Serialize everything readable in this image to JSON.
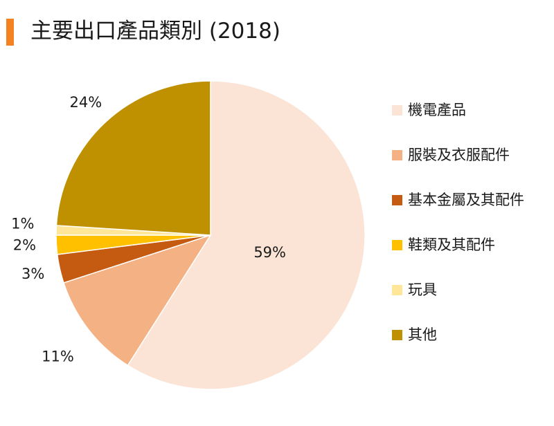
{
  "chart_data": {
    "type": "pie",
    "title": "主要出口產品類別 (2018)",
    "slices": [
      {
        "label": "機電產品",
        "value": 59,
        "value_label": "59%",
        "color": "#fbe4d5"
      },
      {
        "label": "服裝及衣服配件",
        "value": 11,
        "value_label": "11%",
        "color": "#f4b183"
      },
      {
        "label": "基本金屬及其配件",
        "value": 3,
        "value_label": "3%",
        "color": "#c55a11"
      },
      {
        "label": "鞋類及其配件",
        "value": 2,
        "value_label": "2%",
        "color": "#ffc000"
      },
      {
        "label": "玩具",
        "value": 1,
        "value_label": "1%",
        "color": "#ffe699"
      },
      {
        "label": "其他",
        "value": 24,
        "value_label": "24%",
        "color": "#bf9000"
      }
    ],
    "start": "12 o'clock",
    "direction": "clockwise",
    "legend_position": "right"
  },
  "accent_color": "#f58220"
}
